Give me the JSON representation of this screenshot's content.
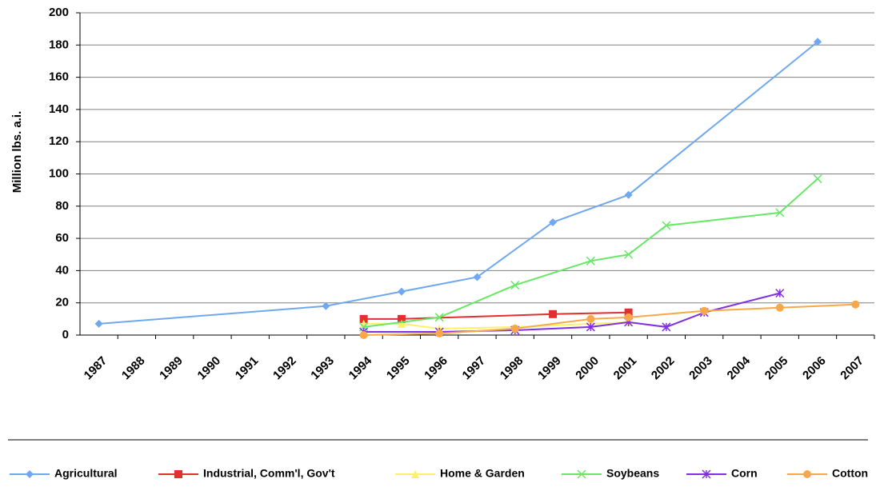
{
  "chart_data": {
    "type": "line",
    "y_label": "Million lbs. a.i.",
    "xlim": [
      1986.5,
      2007.5
    ],
    "xticks": [
      1987,
      1988,
      1989,
      1990,
      1991,
      1992,
      1993,
      1994,
      1995,
      1996,
      1997,
      1998,
      1999,
      2000,
      2001,
      2002,
      2003,
      2004,
      2005,
      2006,
      2007
    ],
    "ylim": [
      0,
      200
    ],
    "yticks": [
      0,
      20,
      40,
      60,
      80,
      100,
      120,
      140,
      160,
      180,
      200
    ],
    "grid": true,
    "legend": "bottom",
    "series": [
      {
        "name": "Agricultural",
        "color": "#6fa8f0",
        "marker": "diamond",
        "x": [
          1987,
          1993,
          1995,
          1997,
          1999,
          2001,
          2006
        ],
        "values": [
          7,
          18,
          27,
          36,
          70,
          87,
          182
        ]
      },
      {
        "name": "Industrial, Comm'l, Gov't",
        "color": "#e03030",
        "marker": "square",
        "x": [
          1994,
          1995,
          1999,
          2001
        ],
        "values": [
          10,
          10,
          13,
          14
        ]
      },
      {
        "name": "Home & Garden",
        "color": "#fff06a",
        "marker": "triangle",
        "x": [
          1994,
          1995,
          1996,
          1998,
          2001
        ],
        "values": [
          7,
          7,
          4,
          5,
          8
        ]
      },
      {
        "name": "Soybeans",
        "color": "#66e866",
        "marker": "cross",
        "x": [
          1994,
          1996,
          1998,
          2000,
          2001,
          2002,
          2005,
          2006
        ],
        "values": [
          5,
          11,
          31,
          46,
          50,
          68,
          76,
          97
        ]
      },
      {
        "name": "Corn",
        "color": "#8030e0",
        "marker": "star",
        "x": [
          1994,
          1996,
          1998,
          2000,
          2001,
          2002,
          2003,
          2005
        ],
        "values": [
          2,
          2,
          3,
          5,
          8,
          5,
          14,
          26
        ]
      },
      {
        "name": "Cotton",
        "color": "#f8a848",
        "marker": "circle",
        "x": [
          1994,
          1996,
          1998,
          2000,
          2001,
          2003,
          2005,
          2007
        ],
        "values": [
          0,
          1,
          4,
          10,
          11,
          15,
          17,
          19
        ]
      }
    ]
  }
}
